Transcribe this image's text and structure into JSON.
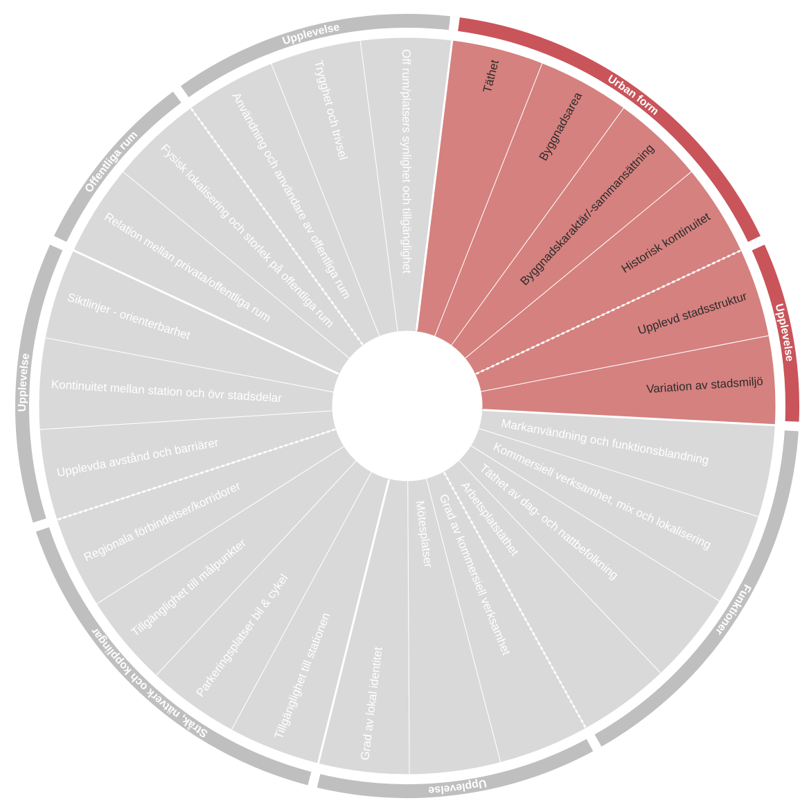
{
  "groups": [
    {
      "label": "Urban form",
      "items": [
        "Täthet",
        "Byggnadsarea",
        "Byggnadskaraktär/-sammansättning",
        "Historisk kontinuitet"
      ]
    },
    {
      "label": "Upplevelse",
      "items": [
        "Upplevd stadsstruktur",
        "Variation av stadsmiljö"
      ]
    },
    {
      "label": "Funktioner",
      "items": [
        "Markanvändning och funktionsblandning",
        "Kommersiell verksamhet, mix och lokalisering",
        "Täthet av dag- och nattbefolkning",
        "Arbetsplatstäthet"
      ]
    },
    {
      "label": "Upplevelse",
      "items": [
        "Grad av kommersiell verksamhet",
        "Mötesplatser",
        "Grad av lokal identitet"
      ]
    },
    {
      "label": "Stråk, nätverk och kopplingar",
      "items": [
        "Tillgänglighet till stationen",
        "Parkeringsplatser bil & cykel",
        "Tillgänglighet till målpunkter",
        "Regionala förbindelser/korridorer"
      ]
    },
    {
      "label": "Upplevelse",
      "items": [
        "Upplevda avstånd och barriärer",
        "Kontinuitet mellan station och övr stadsdelar",
        "Siktlinjer - orienterbarhet"
      ]
    },
    {
      "label": "Offentliga rum",
      "items": [
        "Relation mellan privata/offentliga rum",
        "Fysisk lokalisering och storlek på offentliga rum"
      ]
    },
    {
      "label": "Upplevelse",
      "items": [
        "Användning och användare av offentliga rum",
        "Trygghet och trivsel",
        "Off rum/platsers synlighet och tillgänglighet"
      ]
    }
  ]
}
